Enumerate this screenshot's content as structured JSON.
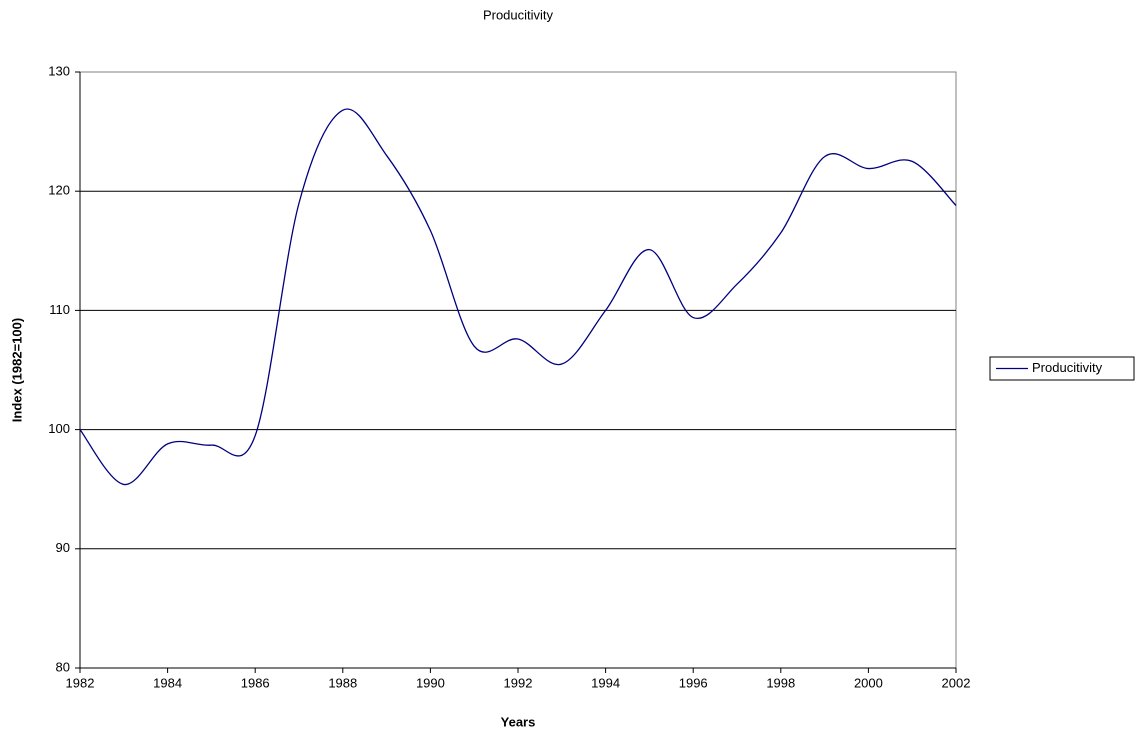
{
  "chart_data": {
    "type": "line",
    "title": "Producitivity",
    "x_label": "Years",
    "y_label": "Index (1982=100)",
    "x": [
      1982,
      1983,
      1984,
      1985,
      1986,
      1987,
      1988,
      1989,
      1990,
      1991,
      1992,
      1993,
      1994,
      1995,
      1996,
      1997,
      1998,
      1999,
      2000,
      2001,
      2002
    ],
    "series": [
      {
        "name": "Producitivity",
        "color": "#000080",
        "values": [
          100,
          95.4,
          98.8,
          98.7,
          99.5,
          119,
          126.8,
          123,
          116.7,
          107,
          107.6,
          105.5,
          110,
          115.1,
          109.4,
          112.2,
          116.5,
          122.9,
          121.9,
          122.5,
          118.8
        ]
      }
    ],
    "xlim": [
      1982,
      2002
    ],
    "xticks": [
      1982,
      1984,
      1986,
      1988,
      1990,
      1992,
      1994,
      1996,
      1998,
      2000,
      2002
    ],
    "ylim": [
      80,
      130
    ],
    "yticks": [
      80,
      90,
      100,
      110,
      120,
      130
    ],
    "grid": true,
    "legend": "right"
  }
}
